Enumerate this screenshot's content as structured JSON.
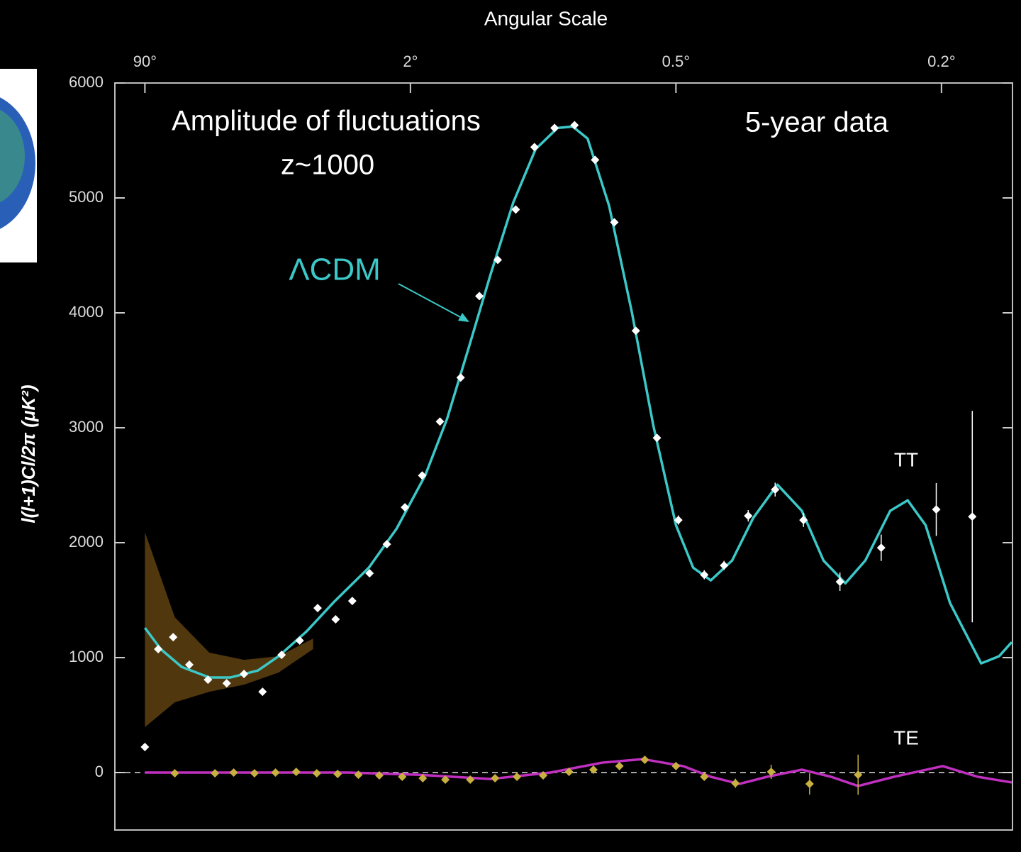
{
  "chart_data": {
    "type": "line",
    "x2_label": "Angular Scale",
    "ylabel": "l(l+1)Cl/2π (μK²)",
    "annotations": [
      "Amplitude of fluctuations",
      "z~1000",
      "5-year data"
    ],
    "xlim": [
      1.3,
      1150
    ],
    "x2ticks": [
      {
        "value": 2,
        "label": "90°"
      },
      {
        "value": 90,
        "label": "2°"
      },
      {
        "value": 360,
        "label": "0.5°"
      },
      {
        "value": 900,
        "label": "0.2°"
      }
    ],
    "ylim": [
      -500,
      6000
    ],
    "yticks": [
      0,
      1000,
      2000,
      3000,
      4000,
      5000,
      6000
    ],
    "series": [
      {
        "kind": "band",
        "color": "#5a3d10",
        "x": [
          2,
          3.07,
          5.04,
          8.28,
          13.6,
          22.3
        ],
        "lower": [
          395,
          611,
          703,
          765,
          870,
          1074
        ],
        "upper": [
          2092,
          1351,
          1043,
          981,
          1012,
          1166
        ]
      },
      {
        "name": "ΛCDM",
        "kind": "line",
        "color": "#3cc8c8",
        "x": [
          2,
          2.51,
          3.39,
          5.04,
          6.79,
          10.1,
          13.6,
          20.3,
          30.2,
          49.6,
          73.8,
          97.2,
          109,
          122,
          137,
          154,
          173,
          194,
          210,
          227,
          254,
          286,
          320,
          360,
          382,
          406,
          437,
          470,
          511,
          556,
          599,
          646,
          692,
          754,
          801,
          852,
          927,
          1032,
          1098,
          1147
        ],
        "values": [
          1259,
          1074,
          919,
          827,
          827,
          888,
          1012,
          1228,
          1487,
          1783,
          2122,
          2585,
          3079,
          3696,
          4344,
          4961,
          5424,
          5609,
          5621,
          5516,
          4930,
          4005,
          3017,
          2153,
          1783,
          1672,
          1845,
          2215,
          2505,
          2277,
          1845,
          1647,
          1845,
          2277,
          2369,
          2153,
          1475,
          950,
          1012,
          1135
        ]
      },
      {
        "kind": "line",
        "color": "#c030c0",
        "x": [
          2,
          36.8,
          93.5,
          137,
          187,
          245,
          303,
          369,
          406,
          448,
          493,
          556,
          615,
          675,
          764,
          904,
          1020,
          1147
        ],
        "values": [
          0,
          0,
          -19,
          -56,
          0,
          86,
          117,
          56,
          -37,
          -99,
          -37,
          25,
          -37,
          -117,
          -37,
          56,
          -37,
          -86
        ]
      },
      {
        "name": "TT",
        "kind": "points",
        "color": "#ffffff",
        "x": [
          2,
          2.42,
          3.0,
          3.78,
          4.94,
          6.46,
          8.28,
          10.8,
          14.2,
          18.4,
          23.8,
          30.8,
          39.1,
          50.1,
          64.2,
          83.2,
          95.7,
          105,
          117,
          129,
          142,
          156,
          172,
          191,
          212,
          236,
          261,
          292,
          326,
          363,
          397,
          425,
          462,
          507,
          559,
          634,
          731,
          884,
          1001
        ],
        "values": [
          222,
          1074,
          1178,
          938,
          808,
          777,
          858,
          703,
          1024,
          1148,
          1431,
          1333,
          1493,
          1734,
          1987,
          2308,
          2585,
          3054,
          3437,
          4146,
          4461,
          4899,
          5442,
          5609,
          5633,
          5331,
          4788,
          3844,
          2912,
          2197,
          1721,
          1802,
          2234,
          2462,
          2197,
          1660,
          1956,
          2289,
          2227
        ],
        "errors": [
          0,
          0,
          0,
          0,
          0,
          0,
          0,
          0,
          0,
          0,
          0,
          0,
          30,
          30,
          30,
          30,
          30,
          30,
          30,
          30,
          30,
          30,
          30,
          30,
          30,
          30,
          30,
          30,
          30,
          40,
          40,
          40,
          50,
          60,
          60,
          80,
          115,
          230,
          920
        ]
      },
      {
        "name": "TE",
        "kind": "points",
        "color": "#c8b040",
        "x": [
          3.07,
          5.46,
          7.14,
          9.62,
          13.0,
          17.5,
          23.5,
          31.7,
          42.7,
          57.6,
          80,
          96,
          108,
          123,
          140,
          157,
          180,
          206,
          234,
          268,
          306,
          360,
          397,
          442,
          500,
          571,
          675
        ],
        "values": [
          -6,
          -6,
          0,
          -6,
          0,
          6,
          -6,
          -12,
          -19,
          -25,
          -37,
          -49,
          -62,
          -62,
          -49,
          -37,
          -25,
          6,
          25,
          56,
          111,
          56,
          -37,
          -93,
          6,
          -99,
          -19
        ],
        "errors": [
          10,
          10,
          10,
          10,
          10,
          10,
          10,
          10,
          10,
          10,
          10,
          10,
          10,
          10,
          10,
          10,
          15,
          15,
          20,
          20,
          20,
          25,
          30,
          40,
          62,
          93,
          175
        ]
      }
    ]
  }
}
